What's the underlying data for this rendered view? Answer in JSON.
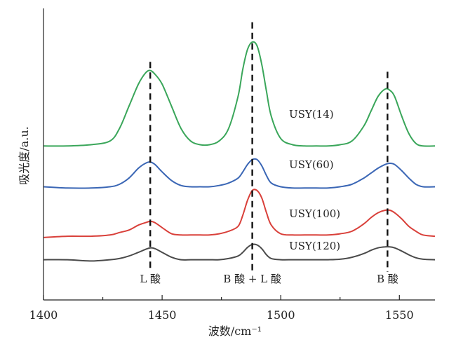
{
  "chart_data": {
    "type": "line",
    "xlabel": "波数/cm⁻¹",
    "ylabel": "吸光度/a.u.",
    "xlim": [
      1400,
      1565
    ],
    "xticks": [
      1400,
      1450,
      1500,
      1550
    ],
    "grid": false,
    "legend": "none",
    "series": [
      {
        "name": "USY(14)",
        "color": "#3aa65a",
        "label_x": 1436,
        "x": [
          1400,
          1410,
          1420,
          1428,
          1432,
          1436,
          1440,
          1443,
          1445,
          1447,
          1450,
          1454,
          1458,
          1462,
          1466,
          1470,
          1474,
          1478,
          1482,
          1484,
          1486,
          1488,
          1490,
          1492,
          1494,
          1496,
          1500,
          1505,
          1510,
          1515,
          1520,
          1525,
          1530,
          1535,
          1538,
          1541,
          1544,
          1546,
          1548,
          1551,
          1554,
          1557,
          1560,
          1565
        ],
        "y": [
          0.58,
          0.58,
          0.585,
          0.6,
          0.65,
          0.74,
          0.83,
          0.875,
          0.885,
          0.87,
          0.83,
          0.74,
          0.65,
          0.6,
          0.585,
          0.585,
          0.6,
          0.65,
          0.78,
          0.89,
          0.97,
          1.0,
          0.985,
          0.91,
          0.8,
          0.7,
          0.61,
          0.585,
          0.58,
          0.58,
          0.58,
          0.585,
          0.6,
          0.66,
          0.72,
          0.78,
          0.81,
          0.805,
          0.78,
          0.7,
          0.63,
          0.59,
          0.58,
          0.58
        ]
      },
      {
        "name": "USY(60)",
        "color": "#3a66b5",
        "label_x": 1436,
        "x": [
          1400,
          1410,
          1420,
          1428,
          1432,
          1436,
          1440,
          1443,
          1445,
          1447,
          1450,
          1454,
          1458,
          1462,
          1466,
          1470,
          1474,
          1478,
          1482,
          1484,
          1486,
          1488,
          1490,
          1492,
          1494,
          1496,
          1500,
          1505,
          1510,
          1515,
          1520,
          1525,
          1530,
          1535,
          1538,
          1541,
          1544,
          1546,
          1548,
          1551,
          1554,
          1557,
          1560,
          1565
        ],
        "y": [
          0.415,
          0.41,
          0.41,
          0.415,
          0.425,
          0.45,
          0.49,
          0.51,
          0.515,
          0.505,
          0.475,
          0.44,
          0.42,
          0.415,
          0.415,
          0.415,
          0.42,
          0.43,
          0.45,
          0.475,
          0.505,
          0.525,
          0.525,
          0.5,
          0.46,
          0.43,
          0.415,
          0.41,
          0.41,
          0.41,
          0.41,
          0.415,
          0.425,
          0.45,
          0.47,
          0.49,
          0.505,
          0.51,
          0.505,
          0.48,
          0.45,
          0.425,
          0.415,
          0.415
        ]
      },
      {
        "name": "USY(100)",
        "color": "#d9403a",
        "label_x": 1436,
        "x": [
          1400,
          1410,
          1420,
          1428,
          1432,
          1436,
          1440,
          1443,
          1445,
          1447,
          1450,
          1454,
          1458,
          1462,
          1466,
          1470,
          1474,
          1478,
          1482,
          1484,
          1486,
          1488,
          1490,
          1492,
          1494,
          1496,
          1500,
          1505,
          1510,
          1515,
          1520,
          1525,
          1530,
          1535,
          1538,
          1541,
          1544,
          1546,
          1548,
          1551,
          1554,
          1557,
          1560,
          1565
        ],
        "y": [
          0.21,
          0.215,
          0.215,
          0.22,
          0.23,
          0.24,
          0.26,
          0.27,
          0.275,
          0.27,
          0.25,
          0.225,
          0.22,
          0.22,
          0.22,
          0.22,
          0.225,
          0.235,
          0.255,
          0.3,
          0.36,
          0.4,
          0.4,
          0.37,
          0.31,
          0.26,
          0.225,
          0.22,
          0.22,
          0.22,
          0.22,
          0.225,
          0.235,
          0.265,
          0.29,
          0.31,
          0.32,
          0.32,
          0.31,
          0.285,
          0.255,
          0.235,
          0.22,
          0.215
        ]
      },
      {
        "name": "USY(120)",
        "color": "#4a4a4a",
        "label_x": 1436,
        "x": [
          1400,
          1410,
          1420,
          1428,
          1432,
          1436,
          1440,
          1443,
          1445,
          1447,
          1450,
          1454,
          1458,
          1462,
          1466,
          1470,
          1474,
          1478,
          1482,
          1484,
          1486,
          1488,
          1490,
          1492,
          1494,
          1496,
          1500,
          1505,
          1510,
          1515,
          1520,
          1525,
          1530,
          1535,
          1538,
          1541,
          1544,
          1546,
          1548,
          1551,
          1554,
          1557,
          1560,
          1565
        ],
        "y": [
          0.12,
          0.12,
          0.115,
          0.12,
          0.125,
          0.135,
          0.15,
          0.162,
          0.168,
          0.165,
          0.15,
          0.13,
          0.12,
          0.12,
          0.12,
          0.12,
          0.12,
          0.125,
          0.135,
          0.15,
          0.17,
          0.182,
          0.18,
          0.165,
          0.14,
          0.125,
          0.12,
          0.12,
          0.12,
          0.12,
          0.12,
          0.122,
          0.13,
          0.145,
          0.158,
          0.168,
          0.172,
          0.172,
          0.168,
          0.155,
          0.14,
          0.128,
          0.122,
          0.12
        ]
      }
    ],
    "reference_lines": [
      {
        "x": 1445,
        "label": "L 酸",
        "y_top": 0.92
      },
      {
        "x": 1488,
        "label": "B 酸 + L 酸",
        "y_top": 1.08
      },
      {
        "x": 1545,
        "label": "B 酸",
        "y_top": 0.88
      }
    ]
  }
}
